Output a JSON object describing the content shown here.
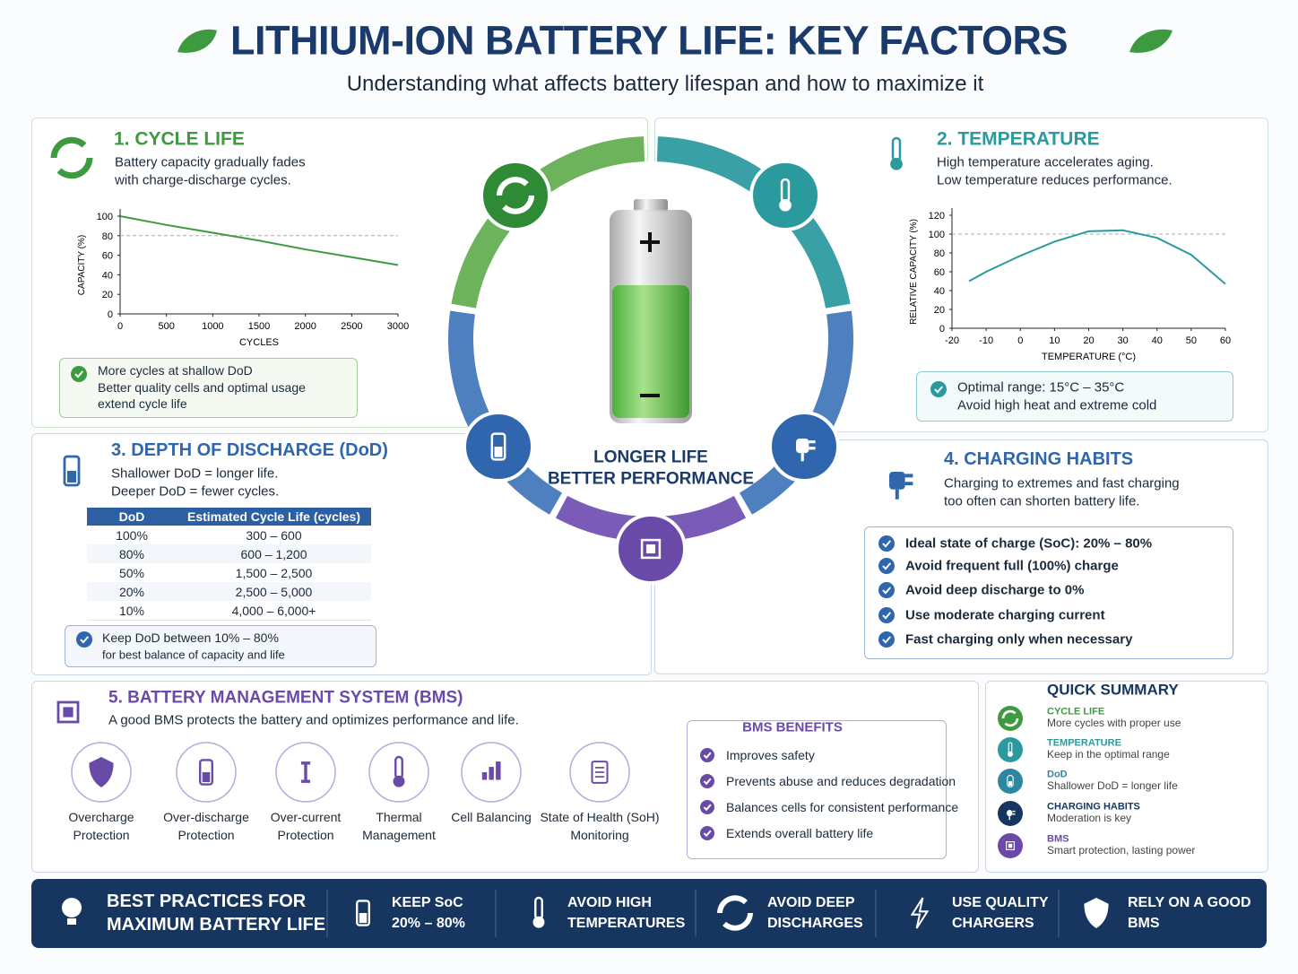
{
  "header": {
    "title": "LITHIUM-ION BATTERY LIFE: KEY FACTORS",
    "subtitle": "Understanding what affects battery lifespan and how to maximize it"
  },
  "center": {
    "lines": [
      "LONGER LIFE",
      "BETTER PERFORMANCE"
    ]
  },
  "cycle_life": {
    "title": "1. CYCLE LIFE",
    "lines": [
      "Battery capacity gradually fades",
      "with charge-discharge cycles."
    ],
    "note": [
      "More cycles at shallow DoD",
      "Better quality cells and optimal usage",
      "extend cycle life"
    ]
  },
  "temperature": {
    "title": "2. TEMPERATURE",
    "lines": [
      "High temperature accelerates aging.",
      "Low temperature reduces performance."
    ],
    "note": [
      "Optimal range: 15°C – 35°C",
      "Avoid high heat and extreme cold"
    ]
  },
  "dod": {
    "title": "3. DEPTH OF DISCHARGE (DoD)",
    "lines": [
      "Shallower DoD = longer life.",
      "Deeper DoD = fewer cycles."
    ],
    "table": {
      "headers": [
        "DoD",
        "Estimated Cycle Life (cycles)"
      ],
      "rows": [
        [
          "100%",
          "300 – 600"
        ],
        [
          "80%",
          "600 – 1,200"
        ],
        [
          "50%",
          "1,500 – 2,500"
        ],
        [
          "20%",
          "2,500 – 5,000"
        ],
        [
          "10%",
          "4,000 – 6,000+"
        ]
      ]
    },
    "note": [
      "Keep DoD between 10% – 80%",
      "for best balance of capacity and life"
    ]
  },
  "charging": {
    "title": "4. CHARGING HABITS",
    "lines": [
      "Charging to extremes and fast charging",
      "too often can shorten battery life."
    ],
    "checklist": [
      "Ideal state of charge (SoC): 20% – 80%",
      "Avoid frequent full (100%) charge",
      "Avoid deep discharge to 0%",
      "Use moderate charging current",
      "Fast charging only when necessary"
    ]
  },
  "bms": {
    "title": "5. BATTERY MANAGEMENT SYSTEM (BMS)",
    "text": "A good BMS protects the battery and optimizes performance and life.",
    "features": [
      [
        "Overcharge",
        "Protection"
      ],
      [
        "Over-discharge",
        "Protection"
      ],
      [
        "Over-current",
        "Protection"
      ],
      [
        "Thermal",
        "Management"
      ],
      [
        "Cell Balancing"
      ],
      [
        "State of Health (SoH)",
        "Monitoring"
      ]
    ],
    "benefits_title": "BMS BENEFITS",
    "benefits": [
      "Improves safety",
      "Prevents abuse and reduces degradation",
      "Balances cells for consistent performance",
      "Extends overall battery life"
    ]
  },
  "summary": {
    "title": "QUICK SUMMARY",
    "items": [
      {
        "title": "CYCLE LIFE",
        "text": "More cycles with proper use"
      },
      {
        "title": "TEMPERATURE",
        "text": "Keep in the optimal range"
      },
      {
        "title": "DoD",
        "text": "Shallower DoD = longer life"
      },
      {
        "title": "CHARGING HABITS",
        "text": "Moderation is key"
      },
      {
        "title": "BMS",
        "text": "Smart protection, lasting power"
      }
    ]
  },
  "footer": {
    "heading": [
      "BEST PRACTICES FOR",
      "MAXIMUM BATTERY LIFE"
    ],
    "items": [
      [
        "KEEP SoC",
        "20% – 80%"
      ],
      [
        "AVOID HIGH",
        "TEMPERATURES"
      ],
      [
        "AVOID DEEP",
        "DISCHARGES"
      ],
      [
        "USE QUALITY",
        "CHARGERS"
      ],
      [
        "RELY ON A GOOD",
        "BMS"
      ]
    ]
  },
  "chart_data": [
    {
      "type": "line",
      "x_label": "CYCLES",
      "y_label": "CAPACITY (%)",
      "color": "#3d9a3f",
      "x": [
        0,
        500,
        1000,
        1500,
        2000,
        2500,
        3000
      ],
      "values": [
        100,
        91,
        83,
        75,
        66,
        58,
        50
      ],
      "xlim": [
        0,
        3000
      ],
      "ylim": [
        0,
        100
      ],
      "xticks": [
        0,
        500,
        1000,
        1500,
        2000,
        2500,
        3000
      ],
      "yticks": [
        0,
        20,
        40,
        60,
        80,
        100
      ],
      "reference_line": 80
    },
    {
      "type": "line",
      "x_label": "TEMPERATURE (°C)",
      "y_label": "RELATIVE CAPACITY (%)",
      "color": "#2a9a9f",
      "x": [
        -15,
        -10,
        0,
        10,
        20,
        30,
        40,
        50,
        60
      ],
      "values": [
        50,
        60,
        77,
        92,
        103,
        104,
        96,
        78,
        47
      ],
      "xlim": [
        -20,
        60
      ],
      "ylim": [
        0,
        120
      ],
      "xticks": [
        -20,
        -10,
        0,
        10,
        20,
        30,
        40,
        50,
        60
      ],
      "yticks": [
        0,
        20,
        40,
        60,
        80,
        100,
        120
      ],
      "reference_line": 100
    }
  ]
}
